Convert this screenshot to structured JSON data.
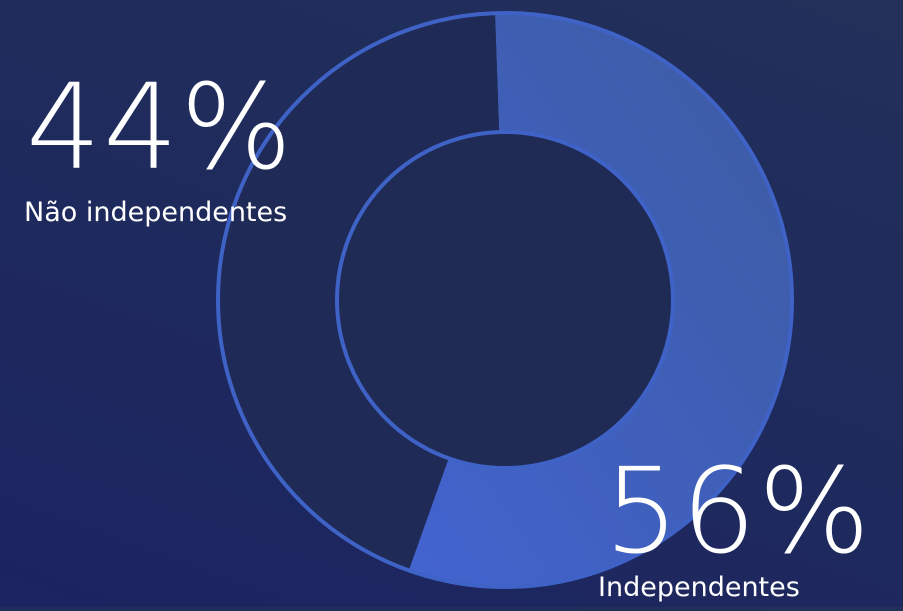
{
  "chart_data": {
    "type": "pie",
    "style": "donut",
    "slices": [
      {
        "label": "Independentes",
        "value": 56,
        "display": "56%",
        "color": "#3d5fb3"
      },
      {
        "label": "Não independentes",
        "value": 44,
        "display": "44%",
        "color": "#1f2b56"
      }
    ],
    "colors": {
      "ring_outline": "#3f62c6",
      "inner_hole": "#1f2b55"
    },
    "grid": false,
    "legend": "none"
  }
}
